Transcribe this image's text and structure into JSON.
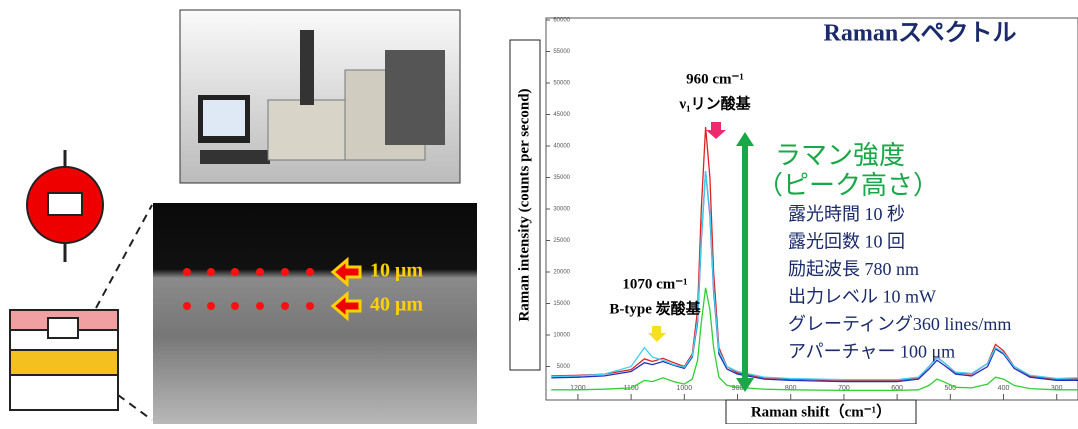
{
  "chart_data": {
    "type": "line",
    "title": "Ramanスペクトル",
    "xlabel": "Raman shift（cm⁻¹）",
    "ylabel": "Raman intensity (counts per second)",
    "x": [
      1250,
      1200,
      1150,
      1100,
      1075,
      1060,
      1040,
      1020,
      1000,
      985,
      975,
      968,
      960,
      952,
      945,
      935,
      920,
      900,
      850,
      800,
      700,
      600,
      560,
      540,
      525,
      510,
      490,
      460,
      430,
      415,
      400,
      380,
      350,
      300,
      260
    ],
    "series": [
      {
        "color": "#e02020",
        "values": [
          3500,
          3600,
          3800,
          4500,
          6200,
          5800,
          6300,
          5600,
          5000,
          7000,
          14000,
          30000,
          43000,
          35000,
          20000,
          8000,
          5000,
          4000,
          3200,
          3000,
          2800,
          2800,
          3200,
          5000,
          6500,
          5500,
          4000,
          3800,
          5500,
          8500,
          7500,
          5000,
          3500,
          3000,
          3000
        ]
      },
      {
        "color": "#2030c0",
        "values": [
          3200,
          3300,
          3500,
          4200,
          5600,
          5300,
          5800,
          5200,
          4700,
          6500,
          12000,
          25000,
          36000,
          29000,
          17000,
          7000,
          4600,
          3800,
          3000,
          2800,
          2600,
          2600,
          3000,
          4600,
          6000,
          5100,
          3800,
          3500,
          5000,
          7800,
          7000,
          4700,
          3300,
          2800,
          2800
        ]
      },
      {
        "color": "#40d0f0",
        "values": [
          3400,
          3500,
          3800,
          5000,
          8000,
          6500,
          6000,
          5300,
          4900,
          6700,
          12500,
          25500,
          36000,
          29500,
          17500,
          7500,
          5000,
          4200,
          3300,
          3100,
          2900,
          2900,
          3300,
          5000,
          6400,
          5500,
          4100,
          3900,
          5500,
          8000,
          7200,
          5000,
          3600,
          3100,
          3200
        ]
      },
      {
        "color": "#30d030",
        "values": [
          1300,
          1300,
          1400,
          1600,
          2800,
          2600,
          3200,
          2600,
          2200,
          3000,
          6000,
          12000,
          17500,
          14000,
          8000,
          3300,
          2000,
          1700,
          1400,
          1300,
          1200,
          1200,
          1300,
          2000,
          3000,
          2500,
          1700,
          1600,
          2200,
          3300,
          3000,
          2000,
          1500,
          1300,
          1300
        ]
      }
    ],
    "xlim": [
      1260,
      260
    ],
    "xticks": [
      1200,
      1100,
      1000,
      900,
      800,
      700,
      600,
      500,
      400,
      300
    ],
    "ylim": [
      0,
      60000
    ],
    "yticks": [
      5000,
      10000,
      15000,
      20000,
      25000,
      30000,
      35000,
      40000,
      45000,
      50000,
      55000,
      60000
    ],
    "annotations": {
      "peak1": [
        "960 cm⁻¹",
        "ν₁リン酸基"
      ],
      "peak2": [
        "1070 cm⁻¹",
        "B-type 炭酸基"
      ],
      "intensity": [
        "ラマン強度",
        "（ピーク高さ）"
      ],
      "conditions": [
        "露光時間 10 秒",
        "露光回数 10 回",
        "励起波長 780 nm",
        "出力レベル 10 mW",
        "グレーティング360 lines/mm",
        "アパーチャー 100 μm"
      ]
    }
  },
  "sample_image": {
    "depths": [
      "10 μm",
      "40 μm"
    ]
  }
}
